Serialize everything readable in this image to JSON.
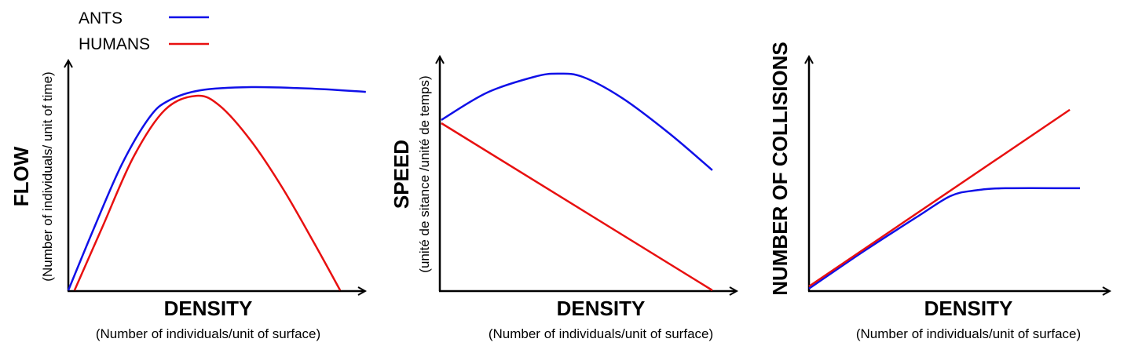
{
  "legend": [
    {
      "label": "ANTS",
      "color": "#1010e8"
    },
    {
      "label": "HUMANS",
      "color": "#e81010"
    }
  ],
  "chart_data": [
    {
      "type": "line",
      "ylabel": "FLOW",
      "ylabel_sub": "(Number of individuals/ unit of time)",
      "xlabel": "DENSITY",
      "xlabel_sub": "(Number of individuals/unit of surface)",
      "xlim": [
        0,
        100
      ],
      "ylim": [
        0,
        100
      ],
      "series": [
        {
          "name": "ANTS",
          "x": [
            0,
            8.8,
            18.1,
            27.5,
            34.1,
            44.8,
            62.1,
            83.5,
            101
          ],
          "y": [
            0,
            27.6,
            55.2,
            75.9,
            83.4,
            87.9,
            89.3,
            88.6,
            87.2
          ]
        },
        {
          "name": "HUMANS",
          "x": [
            2.1,
            11.5,
            22.1,
            32.8,
            43.5,
            51.5,
            62.1,
            72.8,
            83.5,
            92.3
          ],
          "y": [
            0,
            27.6,
            58.6,
            79.3,
            85.5,
            81.0,
            65.5,
            44.8,
            20.7,
            0
          ]
        }
      ]
    },
    {
      "type": "line",
      "ylabel": "SPEED",
      "ylabel_sub": "(unité de sitance /unité de temps)",
      "xlabel": "DENSITY",
      "xlabel_sub": "(Number of individuals/unit of surface)",
      "xlim": [
        0,
        100
      ],
      "ylim": [
        0,
        100
      ],
      "series": [
        {
          "name": "ANTS",
          "x": [
            0.5,
            16,
            32,
            40,
            48.5,
            61.9,
            77.9,
            92.5
          ],
          "y": [
            73.6,
            85.4,
            92.2,
            93.6,
            92.2,
            83.1,
            67.8,
            51.9
          ]
        },
        {
          "name": "HUMANS",
          "x": [
            0.5,
            92.5
          ],
          "y": [
            72.2,
            0
          ]
        }
      ]
    },
    {
      "type": "line",
      "ylabel": "NUMBER OF COLLISIONS",
      "xlabel": "DENSITY",
      "xlabel_sub": "(Number of individuals/unit of surface)",
      "xlim": [
        0,
        100
      ],
      "ylim": [
        0,
        100
      ],
      "series": [
        {
          "name": "ANTS",
          "x": [
            0,
            18.4,
            36.8,
            47.4,
            55.3,
            65.8,
            90.8
          ],
          "y": [
            0.7,
            16.9,
            32.2,
            40.7,
            43.1,
            44.1,
            44.1
          ]
        },
        {
          "name": "HUMANS",
          "x": [
            0,
            87.4
          ],
          "y": [
            1.7,
            78.0
          ]
        }
      ]
    }
  ]
}
